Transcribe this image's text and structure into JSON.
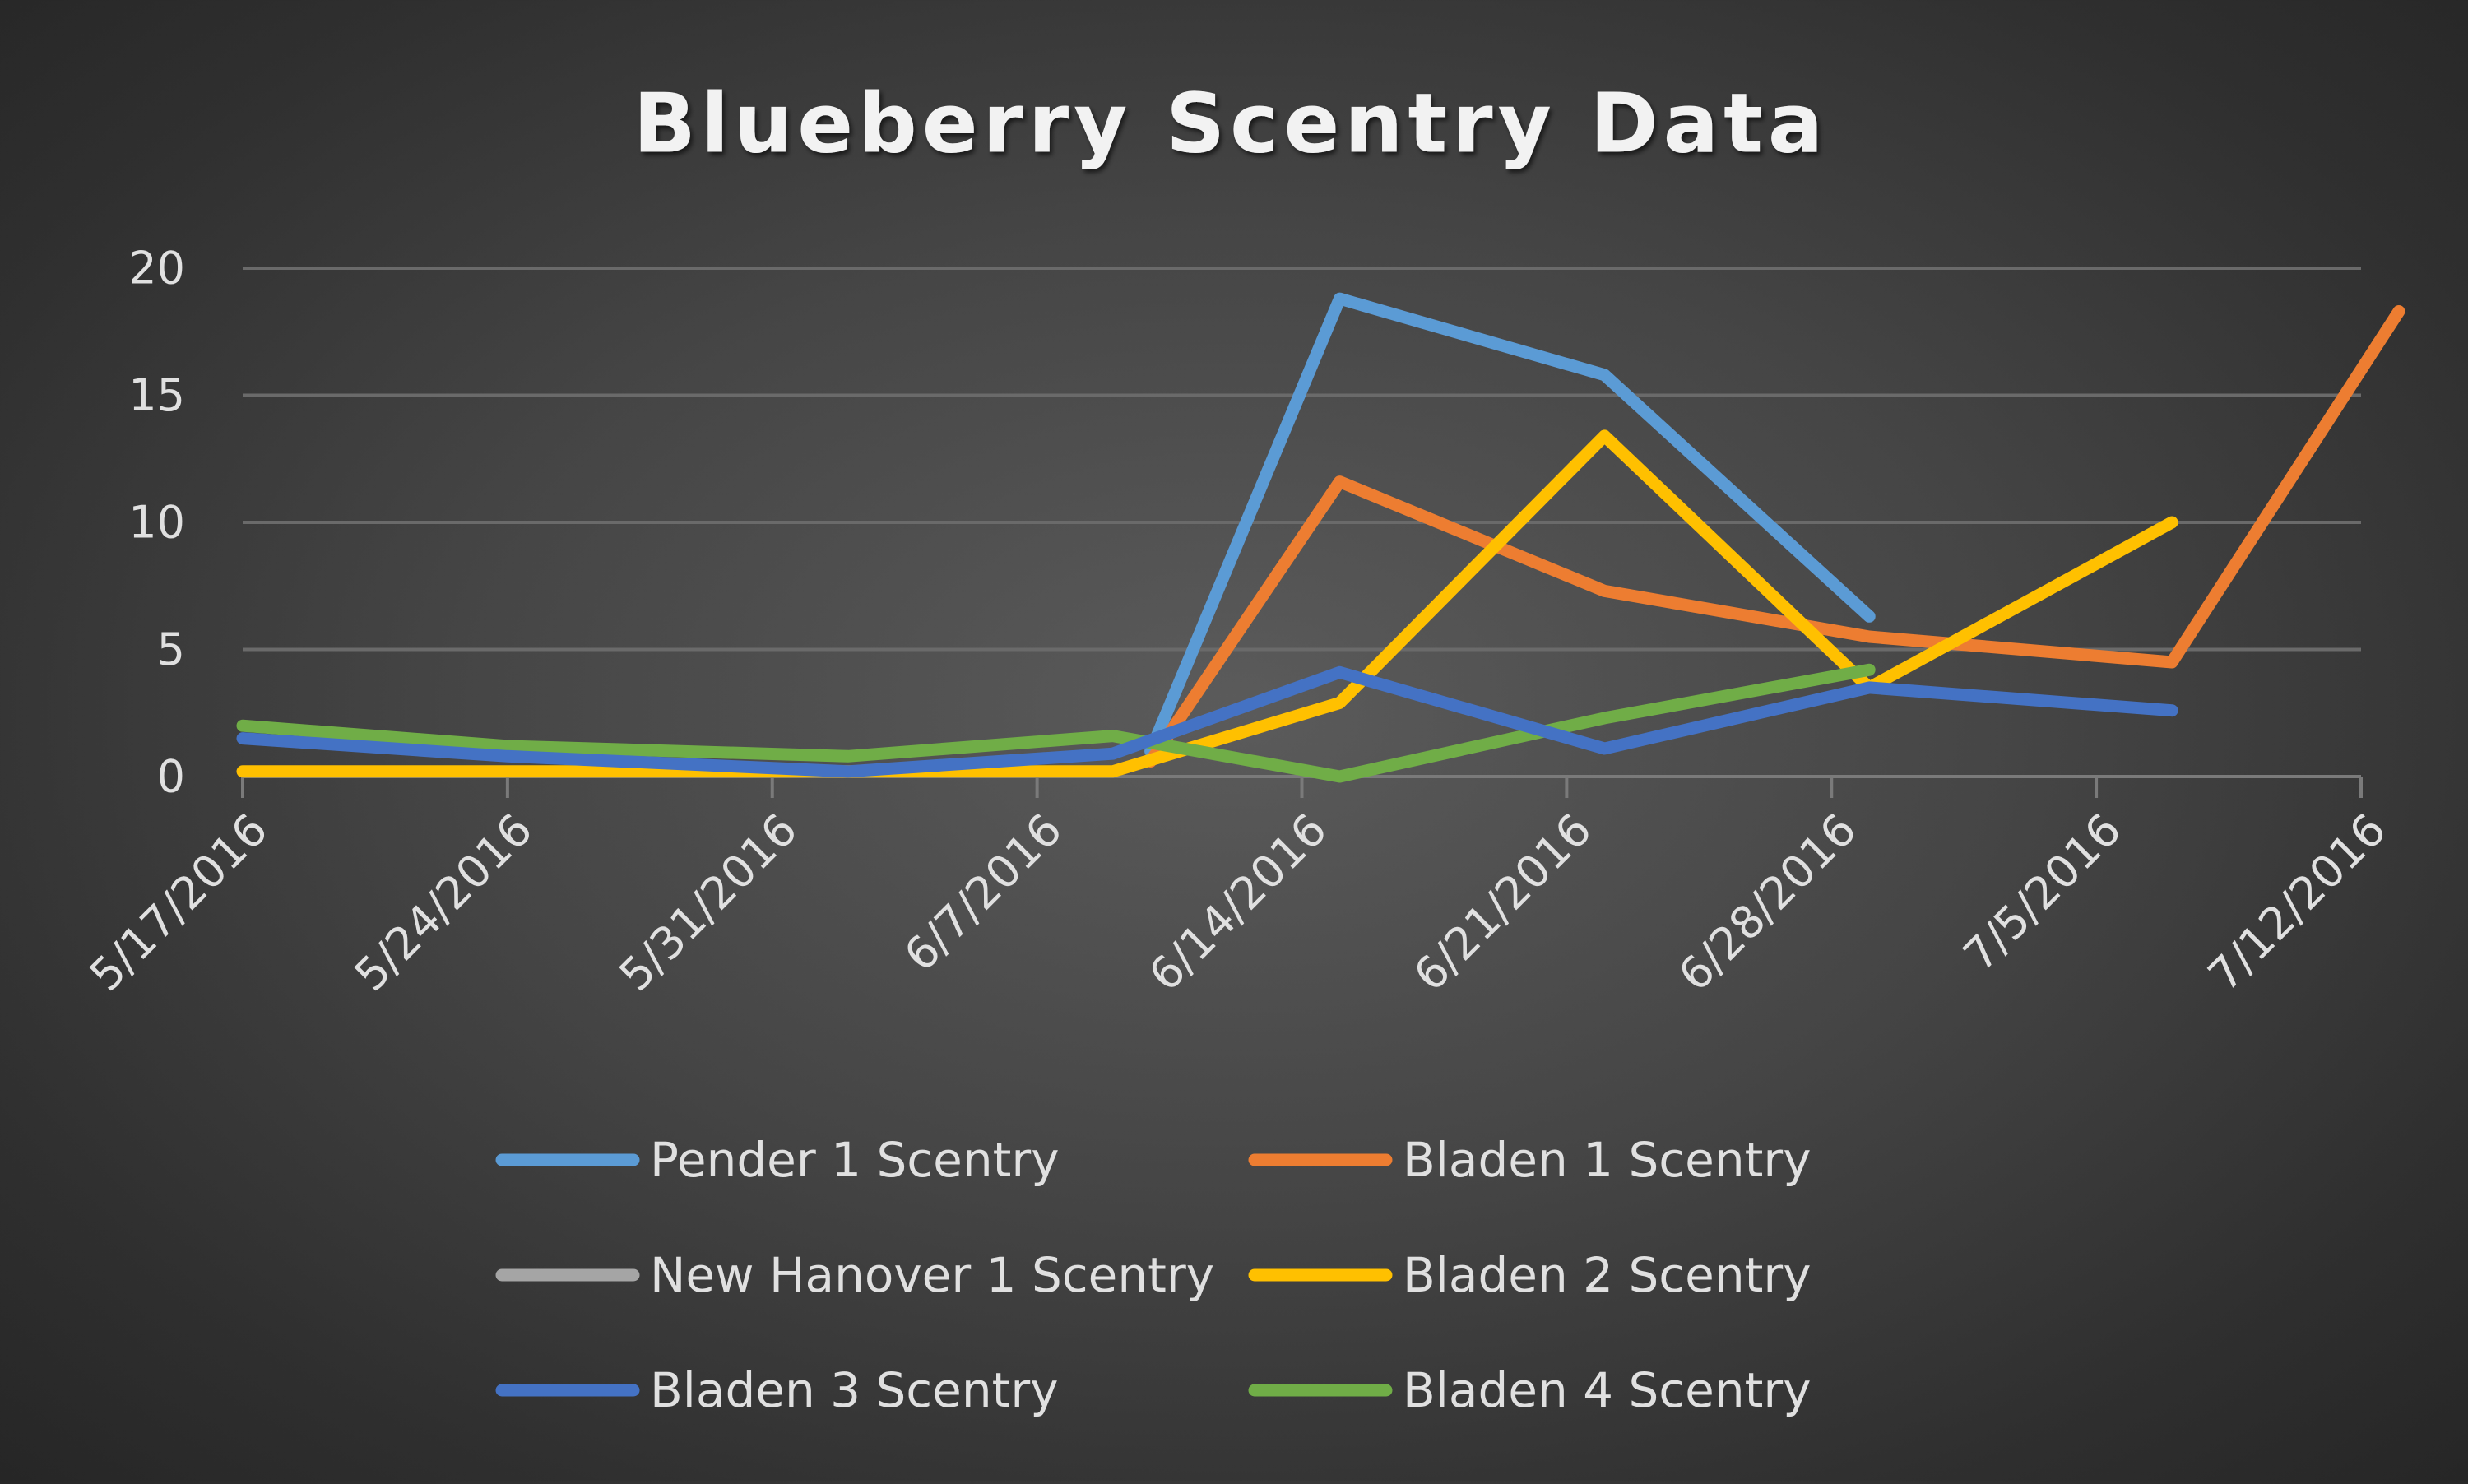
{
  "chart_data": {
    "type": "line",
    "title": "Blueberry Scentry Data",
    "xlabel": "",
    "ylabel": "",
    "x_tick_labels": [
      "5/17/2016",
      "5/24/2016",
      "5/31/2016",
      "6/7/2016",
      "6/14/2016",
      "6/21/2016",
      "6/28/2016",
      "7/5/2016",
      "7/12/2016"
    ],
    "x_range": [
      "2016-05-17",
      "2016-07-12"
    ],
    "y_ticks": [
      0,
      5,
      10,
      15,
      20
    ],
    "ylim": [
      0,
      20
    ],
    "grid": "horizontal",
    "legend_position": "bottom",
    "series": [
      {
        "name": "Pender 1 Scentry",
        "color": "#5b9bd5",
        "points": [
          {
            "x": "2016-06-10",
            "y": 1.0
          },
          {
            "x": "2016-06-15",
            "y": 18.8
          },
          {
            "x": "2016-06-22",
            "y": 15.8
          },
          {
            "x": "2016-06-29",
            "y": 6.3
          }
        ]
      },
      {
        "name": "Bladen 1 Scentry",
        "color": "#ed7d31",
        "points": [
          {
            "x": "2016-06-10",
            "y": 0.6
          },
          {
            "x": "2016-06-15",
            "y": 11.6
          },
          {
            "x": "2016-06-22",
            "y": 7.3
          },
          {
            "x": "2016-06-29",
            "y": 5.5
          },
          {
            "x": "2016-07-07",
            "y": 4.5
          },
          {
            "x": "2016-07-13",
            "y": 18.3
          }
        ]
      },
      {
        "name": "New Hanover 1 Scentry",
        "color": "#a5a5a5",
        "points": []
      },
      {
        "name": "Bladen 2 Scentry",
        "color": "#ffc000",
        "points": [
          {
            "x": "2016-05-17",
            "y": 0.2
          },
          {
            "x": "2016-06-09",
            "y": 0.2
          },
          {
            "x": "2016-06-15",
            "y": 2.9
          },
          {
            "x": "2016-06-22",
            "y": 13.4
          },
          {
            "x": "2016-06-29",
            "y": 3.5
          },
          {
            "x": "2016-07-07",
            "y": 10.0
          }
        ]
      },
      {
        "name": "Bladen 3 Scentry",
        "color": "#4472c4",
        "points": [
          {
            "x": "2016-05-17",
            "y": 1.5
          },
          {
            "x": "2016-05-24",
            "y": 0.8
          },
          {
            "x": "2016-06-02",
            "y": 0.2
          },
          {
            "x": "2016-06-09",
            "y": 0.9
          },
          {
            "x": "2016-06-15",
            "y": 4.1
          },
          {
            "x": "2016-06-22",
            "y": 1.1
          },
          {
            "x": "2016-06-29",
            "y": 3.5
          },
          {
            "x": "2016-07-07",
            "y": 2.6
          }
        ]
      },
      {
        "name": "Bladen 4 Scentry",
        "color": "#70ad47",
        "points": [
          {
            "x": "2016-05-17",
            "y": 2.0
          },
          {
            "x": "2016-05-24",
            "y": 1.2
          },
          {
            "x": "2016-06-02",
            "y": 0.8
          },
          {
            "x": "2016-06-09",
            "y": 1.6
          },
          {
            "x": "2016-06-15",
            "y": 0.0
          },
          {
            "x": "2016-06-22",
            "y": 2.3
          },
          {
            "x": "2016-06-29",
            "y": 4.2
          }
        ]
      }
    ]
  }
}
